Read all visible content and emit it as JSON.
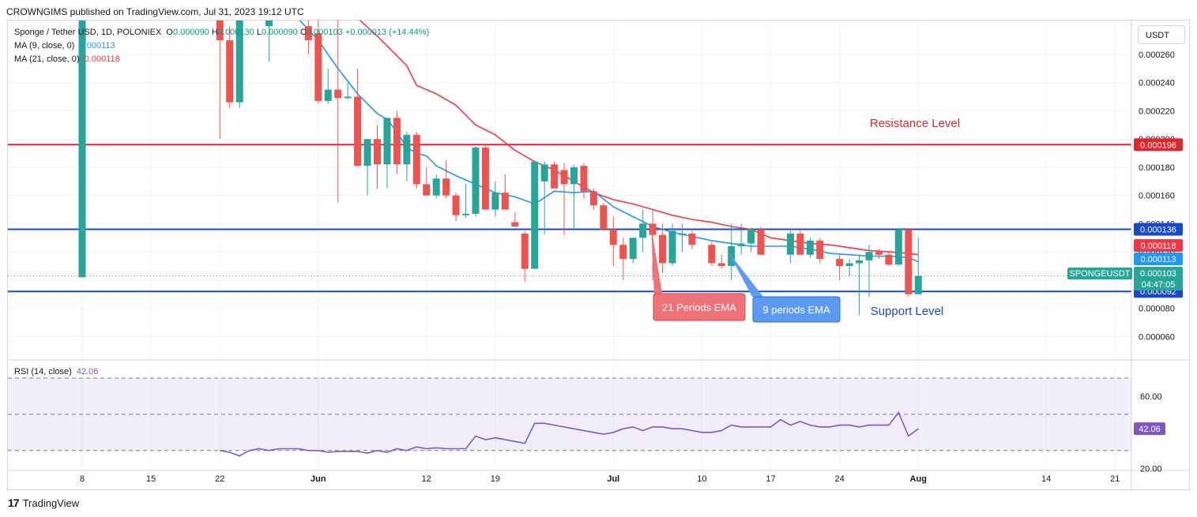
{
  "header": {
    "publisher": "CROWNGIMS published on TradingView.com, Jul 31, 2023 19:12 UTC"
  },
  "legend": {
    "symbol": "Sponge / Tether USD, 1D, POLONIEX",
    "o_label": "O",
    "o": "0.000090",
    "h_label": "H",
    "h": "0.000130",
    "l_label": "L",
    "l": "0.000090",
    "c_label": "C",
    "c": "0.000103",
    "change": "+0.000013 (+14.44%)",
    "ma9_label": "MA (9, close, 0)",
    "ma9_value": "0.000113",
    "ma21_label": "MA (21, close, 0)",
    "ma21_value": "0.000118",
    "rsi_label": "RSI (14, close)",
    "rsi_value": "42.06"
  },
  "unit_button": "USDT",
  "footer": {
    "brand": "TradingView",
    "logo_glyph": "17"
  },
  "colors": {
    "up": "#26a69a",
    "down": "#ef5350",
    "ma9": "#2196f3",
    "ma21": "#f23645",
    "support": "#1848cc",
    "resistance": "#e0252b",
    "rsi": "#7e57c2"
  },
  "chart_data": [
    {
      "type": "candlestick",
      "symbol": "SPONGEUSDT",
      "current_price": "0.000103",
      "countdown": "04:47:05",
      "y_ticks": [
        "0.000060",
        "0.000080",
        "0.000100",
        "0.000120",
        "0.000140",
        "0.000160",
        "0.000180",
        "0.000200",
        "0.000220",
        "0.000240",
        "0.000260"
      ],
      "ylim": [
        4.4e-05,
        0.000284
      ],
      "x_ticks": [
        {
          "day": 0,
          "label": "8"
        },
        {
          "day": 7,
          "label": "15"
        },
        {
          "day": 14,
          "label": "22"
        },
        {
          "day": 24,
          "label": "Jun"
        },
        {
          "day": 35,
          "label": "12"
        },
        {
          "day": 42,
          "label": "19"
        },
        {
          "day": 54,
          "label": "Jul"
        },
        {
          "day": 63,
          "label": "10"
        },
        {
          "day": 70,
          "label": "17"
        },
        {
          "day": 77,
          "label": "24"
        },
        {
          "day": 85,
          "label": "Aug"
        },
        {
          "day": 98,
          "label": "14"
        },
        {
          "day": 105,
          "label": "21"
        }
      ],
      "price_labels": {
        "resistance": "0.000196",
        "support_top": "0.000136",
        "ma21": "0.000118",
        "ma9": "0.000113",
        "support_bottom": "0.000092"
      },
      "annotations": {
        "resistance": "Resistance Level",
        "support": "Support Level",
        "ema21": "21 Periods EMA",
        "ema9": "9 periods EMA"
      },
      "levels": {
        "resistance": 0.000196,
        "support_top": 0.000136,
        "support_bottom": 9.2e-05
      },
      "candles": [
        {
          "d": 0,
          "o": 0.000102,
          "h": 0.0004,
          "l": 0.000102,
          "c": 0.0004
        },
        {
          "d": 14,
          "o": 0.00029,
          "h": 0.0003,
          "l": 0.0002,
          "c": 0.00027
        },
        {
          "d": 15,
          "o": 0.00027,
          "h": 0.00028,
          "l": 0.000222,
          "c": 0.000226
        },
        {
          "d": 16,
          "o": 0.000226,
          "h": 0.0003,
          "l": 0.000222,
          "c": 0.00029
        },
        {
          "d": 19,
          "o": 0.00028,
          "h": 0.0003,
          "l": 0.000255,
          "c": 0.00029
        },
        {
          "d": 23,
          "o": 0.00028,
          "h": 0.0003,
          "l": 0.00026,
          "c": 0.00027
        },
        {
          "d": 24,
          "o": 0.000275,
          "h": 0.00029,
          "l": 0.000225,
          "c": 0.000227
        },
        {
          "d": 25,
          "o": 0.000227,
          "h": 0.00025,
          "l": 0.000225,
          "c": 0.000235
        },
        {
          "d": 26,
          "o": 0.000235,
          "h": 0.00029,
          "l": 0.000155,
          "c": 0.000229
        },
        {
          "d": 27,
          "o": 0.000229,
          "h": 0.00024,
          "l": 0.000228,
          "c": 0.00023
        },
        {
          "d": 28,
          "o": 0.00023,
          "h": 0.00025,
          "l": 0.00018,
          "c": 0.000181
        },
        {
          "d": 29,
          "o": 0.000181,
          "h": 0.0002,
          "l": 0.00016,
          "c": 0.0002
        },
        {
          "d": 30,
          "o": 0.0002,
          "h": 0.00021,
          "l": 0.000165,
          "c": 0.000182
        },
        {
          "d": 31,
          "o": 0.000182,
          "h": 0.000215,
          "l": 0.000165,
          "c": 0.000215
        },
        {
          "d": 32,
          "o": 0.000215,
          "h": 0.00022,
          "l": 0.000175,
          "c": 0.000182
        },
        {
          "d": 33,
          "o": 0.000182,
          "h": 0.000205,
          "l": 0.00017,
          "c": 0.000203
        },
        {
          "d": 34,
          "o": 0.000203,
          "h": 0.000205,
          "l": 0.000165,
          "c": 0.000168
        },
        {
          "d": 35,
          "o": 0.000168,
          "h": 0.00018,
          "l": 0.00016,
          "c": 0.00016
        },
        {
          "d": 36,
          "o": 0.00016,
          "h": 0.000175,
          "l": 0.000158,
          "c": 0.000172
        },
        {
          "d": 37,
          "o": 0.000172,
          "h": 0.000185,
          "l": 0.000158,
          "c": 0.00016
        },
        {
          "d": 38,
          "o": 0.00016,
          "h": 0.000162,
          "l": 0.000142,
          "c": 0.000146
        },
        {
          "d": 39,
          "o": 0.000146,
          "h": 0.000168,
          "l": 0.000144,
          "c": 0.000147
        },
        {
          "d": 40,
          "o": 0.000147,
          "h": 0.000195,
          "l": 0.000145,
          "c": 0.000194
        },
        {
          "d": 41,
          "o": 0.000194,
          "h": 0.000196,
          "l": 0.00015,
          "c": 0.00015
        },
        {
          "d": 42,
          "o": 0.00015,
          "h": 0.00017,
          "l": 0.000145,
          "c": 0.000162
        },
        {
          "d": 43,
          "o": 0.000162,
          "h": 0.000175,
          "l": 0.00015,
          "c": 0.00015
        },
        {
          "d": 44,
          "o": 0.000141,
          "h": 0.000148,
          "l": 0.000138,
          "c": 0.000138
        },
        {
          "d": 45,
          "o": 0.000133,
          "h": 0.000135,
          "l": 9.9e-05,
          "c": 0.000108
        },
        {
          "d": 46,
          "o": 0.000108,
          "h": 0.000185,
          "l": 0.000108,
          "c": 0.000184
        },
        {
          "d": 47,
          "o": 0.00017,
          "h": 0.000184,
          "l": 0.000132,
          "c": 0.000182
        },
        {
          "d": 48,
          "o": 0.000182,
          "h": 0.000184,
          "l": 0.000165,
          "c": 0.000165
        },
        {
          "d": 49,
          "o": 0.000178,
          "h": 0.000183,
          "l": 0.000132,
          "c": 0.000168
        },
        {
          "d": 50,
          "o": 0.000168,
          "h": 0.000182,
          "l": 0.000135,
          "c": 0.00018
        },
        {
          "d": 51,
          "o": 0.000181,
          "h": 0.000183,
          "l": 0.000158,
          "c": 0.000163
        },
        {
          "d": 52,
          "o": 0.000163,
          "h": 0.000165,
          "l": 0.00015,
          "c": 0.000153
        },
        {
          "d": 53,
          "o": 0.000153,
          "h": 0.000155,
          "l": 0.000135,
          "c": 0.000136
        },
        {
          "d": 54,
          "o": 0.000136,
          "h": 0.000145,
          "l": 0.00011,
          "c": 0.000125
        },
        {
          "d": 55,
          "o": 0.000125,
          "h": 0.00013,
          "l": 0.0001,
          "c": 0.000115
        },
        {
          "d": 56,
          "o": 0.000115,
          "h": 0.00013,
          "l": 0.000112,
          "c": 0.00013
        },
        {
          "d": 57,
          "o": 0.00013,
          "h": 0.00015,
          "l": 0.00012,
          "c": 0.00014
        },
        {
          "d": 58,
          "o": 0.00014,
          "h": 0.00015,
          "l": 0.0001,
          "c": 0.000132
        },
        {
          "d": 59,
          "o": 0.000132,
          "h": 0.00014,
          "l": 0.000105,
          "c": 0.000112
        },
        {
          "d": 60,
          "o": 0.000112,
          "h": 0.00014,
          "l": 0.00011,
          "c": 0.000135
        },
        {
          "d": 61,
          "o": 0.000132,
          "h": 0.00014,
          "l": 0.00012,
          "c": 0.000133
        },
        {
          "d": 62,
          "o": 0.000133,
          "h": 0.000135,
          "l": 0.000122,
          "c": 0.000125
        },
        {
          "d": 64,
          "o": 0.000125,
          "h": 0.000127,
          "l": 0.00011,
          "c": 0.000112
        },
        {
          "d": 65,
          "o": 0.000112,
          "h": 0.000118,
          "l": 0.000108,
          "c": 0.00011
        },
        {
          "d": 66,
          "o": 0.00011,
          "h": 0.00014,
          "l": 0.0001,
          "c": 0.000124
        },
        {
          "d": 67,
          "o": 0.000124,
          "h": 0.00014,
          "l": 0.000118,
          "c": 0.000126
        },
        {
          "d": 68,
          "o": 0.000126,
          "h": 0.000137,
          "l": 0.00012,
          "c": 0.000136
        },
        {
          "d": 69,
          "o": 0.000136,
          "h": 0.000138,
          "l": 0.000118,
          "c": 0.000118
        },
        {
          "d": 72,
          "o": 0.000118,
          "h": 0.000135,
          "l": 0.000112,
          "c": 0.000133
        },
        {
          "d": 73,
          "o": 0.000133,
          "h": 0.000135,
          "l": 0.00012,
          "c": 0.000118
        },
        {
          "d": 74,
          "o": 0.000118,
          "h": 0.00013,
          "l": 0.000116,
          "c": 0.000128
        },
        {
          "d": 75,
          "o": 0.000128,
          "h": 0.00013,
          "l": 0.000112,
          "c": 0.000115
        },
        {
          "d": 77,
          "o": 0.000115,
          "h": 0.000118,
          "l": 0.0001,
          "c": 0.00011
        },
        {
          "d": 78,
          "o": 0.00011,
          "h": 0.000115,
          "l": 0.000103,
          "c": 0.000112
        },
        {
          "d": 79,
          "o": 0.000112,
          "h": 0.000118,
          "l": 7.5e-05,
          "c": 0.000114
        },
        {
          "d": 80,
          "o": 0.000114,
          "h": 0.000125,
          "l": 8.8e-05,
          "c": 0.00012
        },
        {
          "d": 81,
          "o": 0.00012,
          "h": 0.000122,
          "l": 0.000115,
          "c": 0.000118
        },
        {
          "d": 82,
          "o": 0.000118,
          "h": 0.00012,
          "l": 0.00011,
          "c": 0.000111
        },
        {
          "d": 83,
          "o": 0.000111,
          "h": 0.000137,
          "l": 0.00011,
          "c": 0.000136
        },
        {
          "d": 84,
          "o": 0.000136,
          "h": 0.000137,
          "l": 8.8e-05,
          "c": 9e-05
        },
        {
          "d": 85,
          "o": 9e-05,
          "h": 0.00013,
          "l": 9e-05,
          "c": 0.000103
        }
      ],
      "ma9": [
        [
          14,
          0.0003
        ],
        [
          18,
          0.000292
        ],
        [
          22,
          0.000285
        ],
        [
          24,
          0.00027
        ],
        [
          26,
          0.00025
        ],
        [
          28,
          0.000232
        ],
        [
          30,
          0.000218
        ],
        [
          31,
          0.000214
        ],
        [
          32,
          0.000205
        ],
        [
          33,
          0.000194
        ],
        [
          34,
          0.00019
        ],
        [
          35,
          0.000188
        ],
        [
          36,
          0.000181
        ],
        [
          38,
          0.000174
        ],
        [
          40,
          0.000168
        ],
        [
          42,
          0.000162
        ],
        [
          44,
          0.000159
        ],
        [
          46,
          0.000154
        ],
        [
          48,
          0.000163
        ],
        [
          50,
          0.000162
        ],
        [
          52,
          0.000163
        ],
        [
          54,
          0.000152
        ],
        [
          56,
          0.000145
        ],
        [
          58,
          0.000138
        ],
        [
          60,
          0.000134
        ],
        [
          62,
          0.000131
        ],
        [
          64,
          0.000128
        ],
        [
          66,
          0.000126
        ],
        [
          68,
          0.000124
        ],
        [
          70,
          0.000124
        ],
        [
          72,
          0.000124
        ],
        [
          74,
          0.000122
        ],
        [
          76,
          0.000119
        ],
        [
          78,
          0.000118
        ],
        [
          80,
          0.000117
        ],
        [
          82,
          0.000117
        ],
        [
          84,
          0.000116
        ],
        [
          85,
          0.000113
        ]
      ],
      "ma21": [
        [
          24,
          0.0003
        ],
        [
          27,
          0.000292
        ],
        [
          30,
          0.000273
        ],
        [
          33,
          0.000252
        ],
        [
          34,
          0.000238
        ],
        [
          36,
          0.000232
        ],
        [
          38,
          0.000224
        ],
        [
          40,
          0.00021
        ],
        [
          42,
          0.000203
        ],
        [
          44,
          0.000192
        ],
        [
          46,
          0.000184
        ],
        [
          48,
          0.000178
        ],
        [
          50,
          0.00017
        ],
        [
          52,
          0.000162
        ],
        [
          54,
          0.000157
        ],
        [
          56,
          0.000154
        ],
        [
          58,
          0.00015
        ],
        [
          60,
          0.000146
        ],
        [
          62,
          0.000143
        ],
        [
          64,
          0.000141
        ],
        [
          66,
          0.000138
        ],
        [
          68,
          0.000136
        ],
        [
          70,
          0.00013
        ],
        [
          72,
          0.000128
        ],
        [
          74,
          0.000126
        ],
        [
          76,
          0.000125
        ],
        [
          78,
          0.000123
        ],
        [
          80,
          0.000121
        ],
        [
          82,
          0.00012
        ],
        [
          84,
          0.000119
        ],
        [
          85,
          0.000118
        ]
      ]
    },
    {
      "type": "line",
      "name": "RSI (14, close)",
      "current": "42.06",
      "y_ticks": [
        "20.00",
        "60.00"
      ],
      "ylim": [
        19,
        80
      ],
      "bands": {
        "upper": 70,
        "middle": 50,
        "lower": 30
      },
      "points": [
        [
          14,
          30
        ],
        [
          15,
          29
        ],
        [
          16,
          27
        ],
        [
          17,
          30
        ],
        [
          18,
          31
        ],
        [
          19,
          30
        ],
        [
          20,
          31
        ],
        [
          21,
          31
        ],
        [
          22,
          31
        ],
        [
          23,
          30
        ],
        [
          24,
          30
        ],
        [
          25,
          29
        ],
        [
          26,
          29.5
        ],
        [
          27,
          29.5
        ],
        [
          28,
          29.5
        ],
        [
          29,
          28.5
        ],
        [
          30,
          30
        ],
        [
          31,
          29
        ],
        [
          32,
          31
        ],
        [
          33,
          30
        ],
        [
          34,
          32
        ],
        [
          35,
          31
        ],
        [
          36,
          31.5
        ],
        [
          37,
          31
        ],
        [
          38,
          31
        ],
        [
          39,
          31
        ],
        [
          40,
          38
        ],
        [
          41,
          36
        ],
        [
          42,
          37
        ],
        [
          43,
          36
        ],
        [
          44,
          35
        ],
        [
          45,
          34
        ],
        [
          46,
          45
        ],
        [
          47,
          45
        ],
        [
          48,
          44
        ],
        [
          49,
          43
        ],
        [
          50,
          42
        ],
        [
          51,
          41
        ],
        [
          52,
          40
        ],
        [
          53,
          39
        ],
        [
          54,
          40
        ],
        [
          55,
          42
        ],
        [
          56,
          43
        ],
        [
          57,
          41
        ],
        [
          58,
          43
        ],
        [
          59,
          43
        ],
        [
          60,
          42
        ],
        [
          61,
          42
        ],
        [
          62,
          41
        ],
        [
          63,
          40
        ],
        [
          64,
          40
        ],
        [
          65,
          41
        ],
        [
          66,
          44
        ],
        [
          67,
          43
        ],
        [
          68,
          43
        ],
        [
          69,
          43
        ],
        [
          70,
          43
        ],
        [
          71,
          47
        ],
        [
          72,
          44
        ],
        [
          73,
          46
        ],
        [
          74,
          44
        ],
        [
          75,
          43
        ],
        [
          76,
          43
        ],
        [
          77,
          44
        ],
        [
          78,
          44
        ],
        [
          79,
          43
        ],
        [
          80,
          44
        ],
        [
          81,
          44
        ],
        [
          82,
          44
        ],
        [
          83,
          51
        ],
        [
          84,
          38
        ],
        [
          85,
          42
        ]
      ]
    }
  ]
}
